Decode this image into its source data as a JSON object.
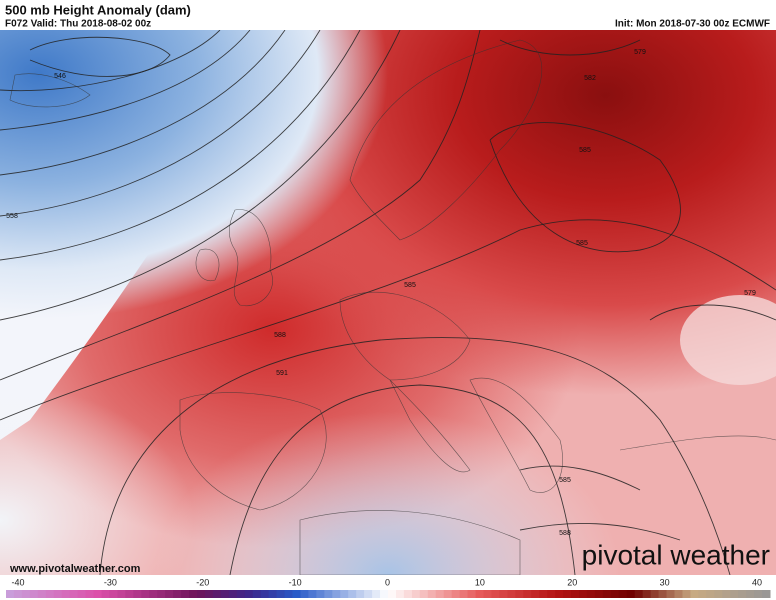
{
  "header": {
    "title": "500 mb Height Anomaly (dam)",
    "valid": "F072 Valid: Thu 2018-08-02 00z",
    "init": "Init: Mon 2018-07-30 00z ECMWF"
  },
  "contour_labels": [
    546,
    558,
    579,
    582,
    585,
    585,
    585,
    579,
    588,
    591,
    585,
    588
  ],
  "footer": {
    "website": "www.pivotalweather.com",
    "logo": "pivotal weather"
  },
  "colorbar": {
    "ticks": [
      -40,
      -30,
      -20,
      -10,
      0,
      10,
      20,
      30,
      40
    ]
  }
}
